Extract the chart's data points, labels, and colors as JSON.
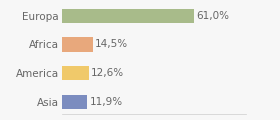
{
  "categories": [
    "Europa",
    "Africa",
    "America",
    "Asia"
  ],
  "values": [
    61.0,
    14.5,
    12.6,
    11.9
  ],
  "labels": [
    "61,0%",
    "14,5%",
    "12,6%",
    "11,9%"
  ],
  "colors": [
    "#a8bb8a",
    "#e8a87c",
    "#f0c96a",
    "#7b8cbf"
  ],
  "xlim": [
    0,
    85
  ],
  "background_color": "#f7f7f7",
  "bar_height": 0.5,
  "label_fontsize": 7.5,
  "tick_fontsize": 7.5
}
